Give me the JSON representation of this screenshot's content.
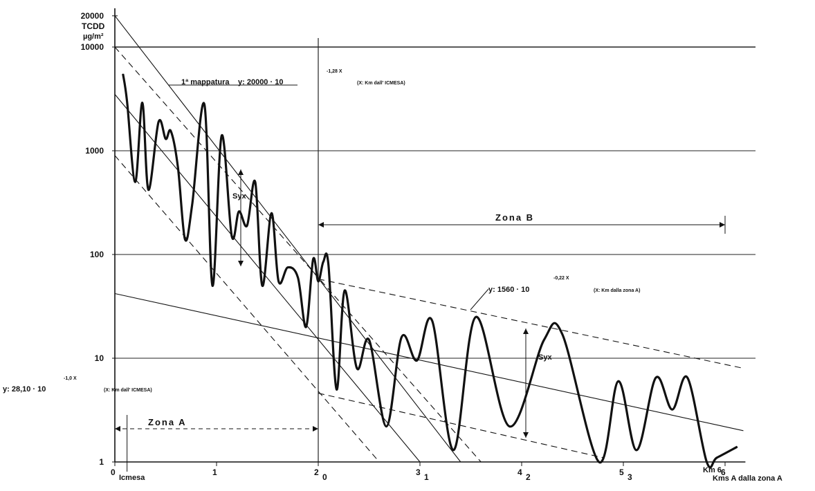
{
  "chart_data": {
    "type": "line",
    "title": "",
    "ylabel": "TCDD µg/m²",
    "xlabel": "Kms dalla zona A",
    "y_scale": "log",
    "ylim": [
      1,
      20000
    ],
    "xlim": [
      0,
      6.2
    ],
    "y_ticks": [
      {
        "value": 1,
        "label": "1"
      },
      {
        "value": 10,
        "label": "10"
      },
      {
        "value": 100,
        "label": "100"
      },
      {
        "value": 1000,
        "label": "1000"
      },
      {
        "value": 10000,
        "label": "10000"
      },
      {
        "value": 20000,
        "label": "20000"
      }
    ],
    "x_ticks_icmesa": [
      {
        "value": 0,
        "label": "0"
      },
      {
        "value": 1,
        "label": "1"
      },
      {
        "value": 2,
        "label": "2"
      },
      {
        "value": 3,
        "label": "3"
      },
      {
        "value": 4,
        "label": "4"
      },
      {
        "value": 5,
        "label": "5"
      },
      {
        "value": 6,
        "label": "6"
      }
    ],
    "x_ticks_zonaA": [
      {
        "value": 2,
        "label": "0"
      },
      {
        "value": 3,
        "label": "1"
      },
      {
        "value": 4,
        "label": "2"
      },
      {
        "value": 5,
        "label": "3"
      }
    ],
    "labels": {
      "y_top": "TCDD",
      "y_unit": "µg/m²",
      "icmesa": "Icmesa",
      "km6": "Km 6",
      "x_axis_end": "Kms A dalla zona A",
      "zona_a": "Zona A",
      "zona_b": "Zona B",
      "syx_1": "Syx",
      "syx_2": "Syx"
    },
    "equations": {
      "mappatura_prefix": "1ª mappatura",
      "mappatura_eq": "y: 20000 · 10",
      "mappatura_exp": "-1,28 X",
      "mappatura_note": "(X: Km dall' ICMESA)",
      "zonaA_eq": "y: 1560 · 10",
      "zonaA_exp": "-0,22 X",
      "zonaA_note": "(X: Km dalla zona A)",
      "icmesa_eq": "y: 28,10 · 10",
      "icmesa_exp": "-1,0 X",
      "icmesa_note": "(X: Km dall' ICMESA)"
    },
    "series": [
      {
        "style": "thick",
        "points": [
          [
            0.08,
            5500
          ],
          [
            0.12,
            3000
          ],
          [
            0.2,
            500
          ],
          [
            0.27,
            2900
          ],
          [
            0.33,
            420
          ],
          [
            0.43,
            1900
          ],
          [
            0.5,
            1300
          ],
          [
            0.55,
            1550
          ],
          [
            0.62,
            700
          ],
          [
            0.69,
            140
          ],
          [
            0.76,
            300
          ],
          [
            0.88,
            2800
          ],
          [
            0.96,
            50
          ],
          [
            1.05,
            1400
          ],
          [
            1.15,
            150
          ],
          [
            1.22,
            260
          ],
          [
            1.3,
            190
          ],
          [
            1.38,
            500
          ],
          [
            1.45,
            50
          ],
          [
            1.54,
            250
          ],
          [
            1.61,
            55
          ],
          [
            1.7,
            75
          ],
          [
            1.8,
            60
          ],
          [
            1.88,
            20
          ],
          [
            1.95,
            90
          ],
          [
            2.0,
            55
          ],
          [
            2.05,
            85
          ],
          [
            2.1,
            80
          ],
          [
            2.18,
            5
          ],
          [
            2.26,
            45
          ],
          [
            2.38,
            8
          ],
          [
            2.5,
            15
          ],
          [
            2.67,
            2.2
          ],
          [
            2.82,
            16
          ],
          [
            2.97,
            9.5
          ],
          [
            3.12,
            23
          ],
          [
            3.33,
            1.3
          ],
          [
            3.55,
            25
          ],
          [
            3.88,
            2.2
          ],
          [
            4.22,
            15
          ],
          [
            4.4,
            17
          ],
          [
            4.76,
            1
          ],
          [
            4.95,
            6
          ],
          [
            5.13,
            1.3
          ],
          [
            5.32,
            6.5
          ],
          [
            5.48,
            3.2
          ],
          [
            5.63,
            6.5
          ],
          [
            5.82,
            1.0
          ],
          [
            5.92,
            1.1
          ],
          [
            6.12,
            1.4
          ]
        ]
      }
    ],
    "fit_lines": [
      {
        "style": "solid",
        "from": [
          0,
          20000
        ],
        "to": [
          3.4,
          1
        ]
      },
      {
        "style": "solid",
        "from": [
          0,
          3500
        ],
        "to": [
          3.0,
          1
        ]
      },
      {
        "style": "dashed",
        "from": [
          0,
          10000
        ],
        "to": [
          3.6,
          1
        ]
      },
      {
        "style": "dashed",
        "from": [
          0,
          900
        ],
        "to": [
          2.6,
          1
        ]
      },
      {
        "style": "solid",
        "from": [
          0,
          42
        ],
        "to": [
          6.18,
          2.0
        ]
      },
      {
        "style": "dashed",
        "from": [
          2.0,
          58
        ],
        "to": [
          6.18,
          8.0
        ]
      },
      {
        "style": "dashed",
        "from": [
          2.0,
          4.6
        ],
        "to": [
          4.8,
          1.1
        ]
      }
    ]
  }
}
